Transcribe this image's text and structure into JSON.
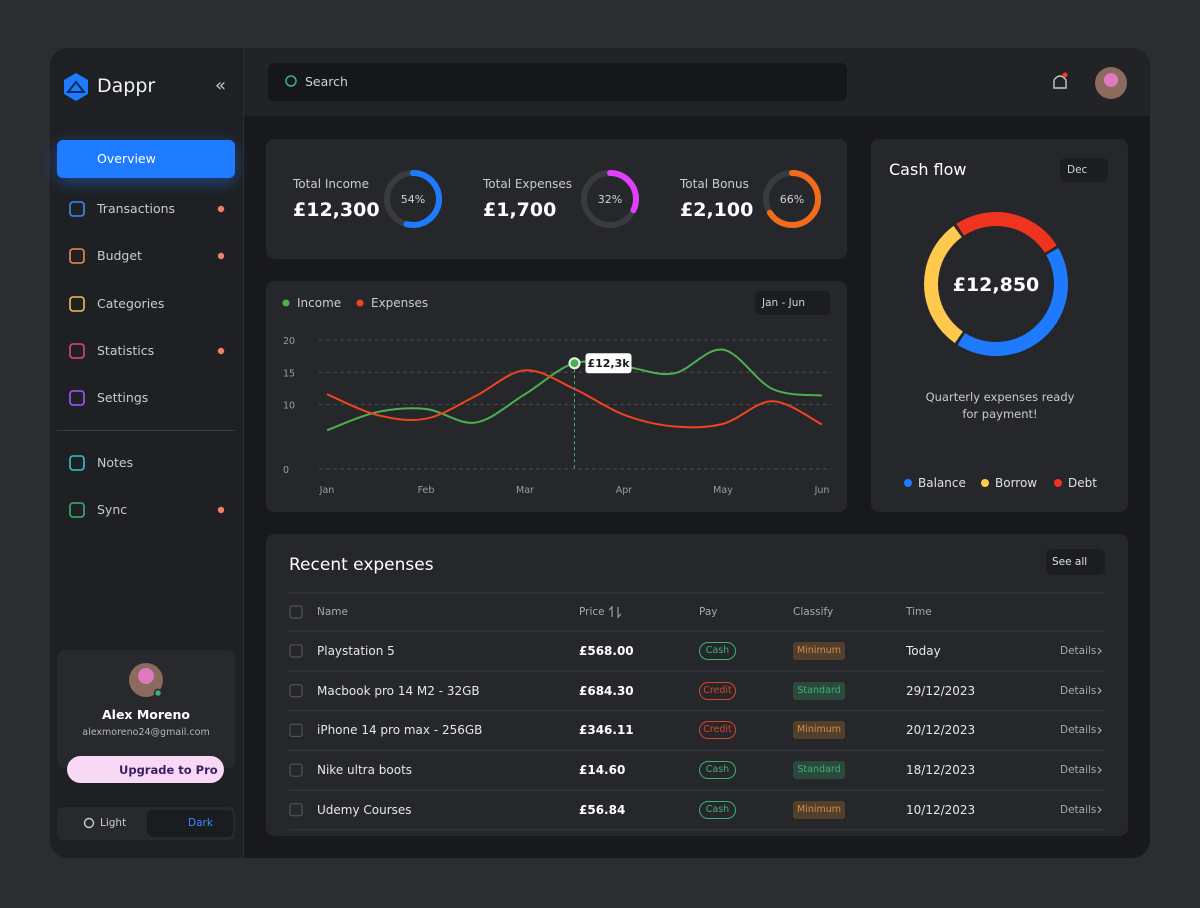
{
  "sidebar": {
    "brand": "Dappr",
    "nav": [
      {
        "label": "Overview",
        "active": true,
        "icon_color": "#ffffff"
      },
      {
        "label": "Transactions",
        "dot": true,
        "icon_color": "#3d8bff"
      },
      {
        "label": "Budget",
        "dot": true,
        "icon_color": "#f08a4b"
      },
      {
        "label": "Categories",
        "icon_color": "#e8c547"
      },
      {
        "label": "Statistics",
        "dot": true,
        "icon_color": "#e0457b"
      },
      {
        "label": "Settings",
        "icon_color": "#a259ff"
      }
    ],
    "nav_secondary": [
      {
        "label": "Notes",
        "icon_color": "#35c4c9"
      },
      {
        "label": "Sync",
        "dot": true,
        "icon_color": "#3bb273"
      }
    ],
    "user": {
      "name": "Alex Moreno",
      "email": "alexmoreno24@gmail.com",
      "upgrade": "Upgrade to Pro"
    },
    "theme": [
      {
        "label": "Light"
      },
      {
        "label": "Dark",
        "active": true
      }
    ]
  },
  "search": {
    "placeholder": "Search"
  },
  "stats": [
    {
      "label": "Total Income",
      "amount": "£12,300",
      "percent": 54,
      "percent_label": "54%",
      "color": "#1e7bff"
    },
    {
      "label": "Total Expenses",
      "amount": "£1,700",
      "percent": 32,
      "percent_label": "32%",
      "color": "#e040fb"
    },
    {
      "label": "Total Bonus",
      "amount": "£2,100",
      "percent": 66,
      "percent_label": "66%",
      "color": "#f26b1d"
    }
  ],
  "line_chart": {
    "type": "line",
    "period": "Jan - Jun",
    "categories": [
      "Jan",
      null,
      "Feb",
      null,
      "Mar",
      null,
      "Apr",
      null,
      "May",
      null,
      "Jun"
    ],
    "ylim": [
      0,
      20
    ],
    "yticks": [
      0,
      10,
      15,
      20
    ],
    "grid": true,
    "series": [
      {
        "name": "Income",
        "color": "#4caf50",
        "values": [
          6.0,
          8.8,
          9.3,
          7.2,
          11.6,
          16.4,
          15.9,
          14.8,
          18.5,
          12.4,
          11.4
        ]
      },
      {
        "name": "Expenses",
        "color": "#f0441f",
        "values": [
          11.6,
          8.4,
          7.8,
          11.3,
          15.3,
          12.4,
          8.4,
          6.6,
          7.0,
          10.5,
          6.9
        ]
      }
    ],
    "annotation": {
      "text": "£12,3k",
      "y": 16.4
    }
  },
  "cash_flow": {
    "title": "Cash flow",
    "period": "Dec",
    "total": "£12,850",
    "note": "Quarterly expenses ready for payment!",
    "segments": [
      {
        "name": "Balance",
        "color": "#1e7bff",
        "value": 43
      },
      {
        "name": "Borrow",
        "color": "#ffc94d",
        "value": 31
      },
      {
        "name": "Debt",
        "color": "#f0331f",
        "value": 26
      }
    ]
  },
  "expenses": {
    "title": "Recent expenses",
    "see_all": "See all",
    "columns": [
      "Name",
      "Price",
      "Pay",
      "Classify",
      "Time"
    ],
    "rows": [
      {
        "name": "Playstation 5",
        "price": "£568.00",
        "pay": "Cash",
        "pay_color": "#3bb273",
        "classify": "Minimum",
        "classify_color": "#d98a3a",
        "time": "Today",
        "action": "Details"
      },
      {
        "name": "Macbook pro 14 M2 - 32GB",
        "price": "£684.30",
        "pay": "Credit",
        "pay_color": "#d9442b",
        "classify": "Standard",
        "classify_color": "#3bb273",
        "time": "29/12/2023",
        "action": "Details"
      },
      {
        "name": "iPhone 14 pro max - 256GB",
        "price": "£346.11",
        "pay": "Credit",
        "pay_color": "#d9442b",
        "classify": "Minimum",
        "classify_color": "#d98a3a",
        "time": "20/12/2023",
        "action": "Details"
      },
      {
        "name": "Nike ultra boots",
        "price": "£14.60",
        "pay": "Cash",
        "pay_color": "#3bb273",
        "classify": "Standard",
        "classify_color": "#3bb273",
        "time": "18/12/2023",
        "action": "Details"
      },
      {
        "name": "Udemy Courses",
        "price": "£56.84",
        "pay": "Cash",
        "pay_color": "#3bb273",
        "classify": "Minimum",
        "classify_color": "#d98a3a",
        "time": "10/12/2023",
        "action": "Details"
      }
    ]
  }
}
